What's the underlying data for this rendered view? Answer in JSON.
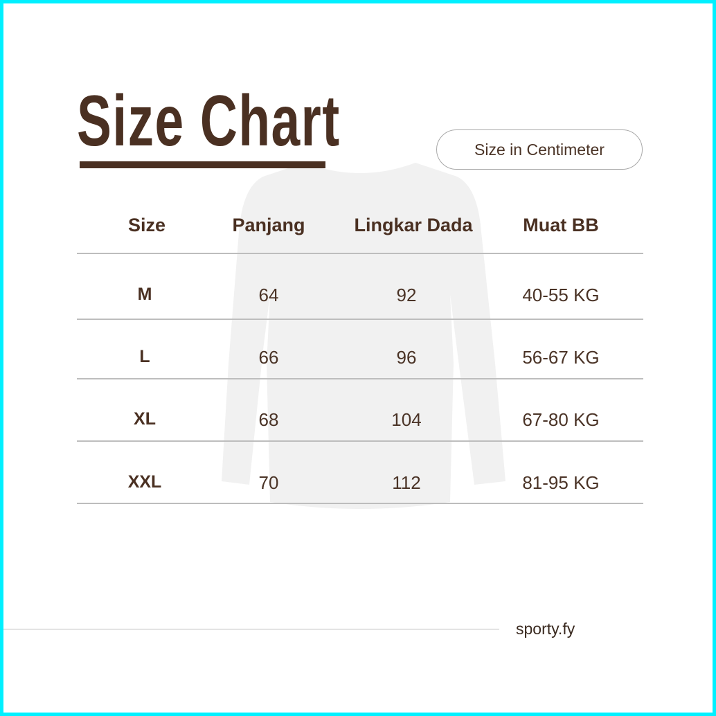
{
  "header": {
    "title": "Size Chart",
    "unit_badge": "Size in Centimeter"
  },
  "table": {
    "columns": [
      "Size",
      "Panjang",
      "Lingkar Dada",
      "Muat BB"
    ],
    "rows": [
      [
        "M",
        "64",
        "92",
        "40-55 KG"
      ],
      [
        "L",
        "66",
        "96",
        "56-67 KG"
      ],
      [
        "XL",
        "68",
        "104",
        "67-80 KG"
      ],
      [
        "XXL",
        "70",
        "112",
        "81-95 KG"
      ]
    ]
  },
  "footer": {
    "brand": "sporty.fy"
  },
  "colors": {
    "accent": "#4a3022",
    "border": "#00f0ff",
    "watermark": "#f1f1f1"
  },
  "icons": {
    "background": "long-sleeve-shirt-watermark"
  }
}
